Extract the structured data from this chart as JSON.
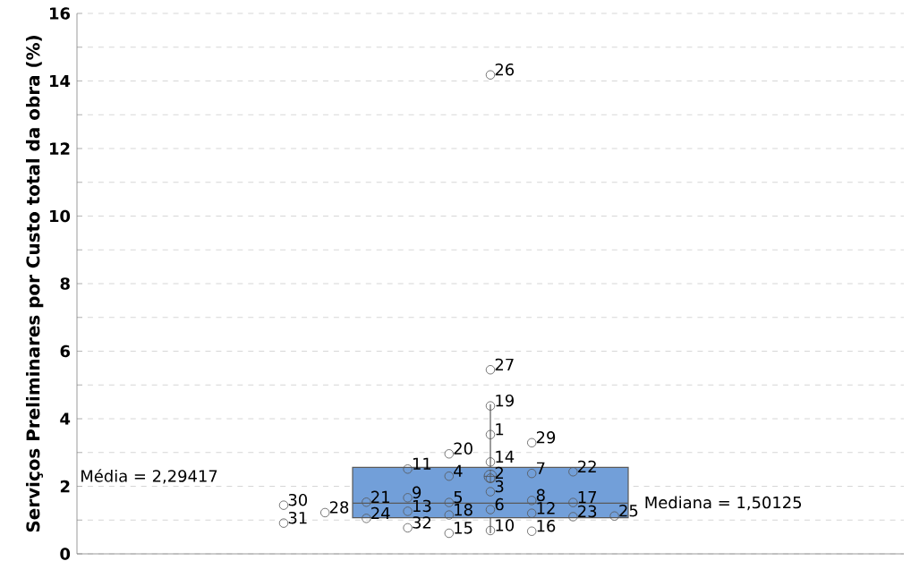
{
  "chart_data": {
    "type": "box",
    "ylabel": "Serviços Preliminares por Custo total da obra (%)",
    "categories": [
      null
    ],
    "ylim": [
      0,
      16
    ],
    "yticks": [
      0,
      {
        "value": 1,
        "label": null
      },
      2,
      {
        "value": 3,
        "label": null
      },
      4,
      {
        "value": 5,
        "label": null
      },
      6,
      {
        "value": 7,
        "label": null
      },
      8,
      {
        "value": 9,
        "label": null
      },
      10,
      {
        "value": 11,
        "label": null
      },
      12,
      {
        "value": 13,
        "label": null
      },
      14,
      {
        "value": 15,
        "label": null
      },
      16
    ],
    "grid": "y",
    "color": "#729fd9",
    "boxes": [
      {
        "low": 0.61,
        "q1": 1.07,
        "median": 1.50125,
        "q3": 2.56,
        "high": 4.43,
        "mean": 2.29417
      }
    ],
    "series": [
      {
        "type": "scatter",
        "marker": "circle",
        "color": "#555555",
        "x": [
          null,
          null,
          null,
          null,
          null,
          null,
          null,
          null,
          null,
          null,
          null,
          null,
          null,
          null,
          null,
          null,
          null,
          null,
          null,
          null,
          null,
          null,
          null,
          null,
          null,
          null,
          null,
          null,
          null,
          null,
          null,
          null
        ],
        "values": [
          3.53,
          2.24,
          1.84,
          2.3,
          1.52,
          1.31,
          2.38,
          1.58,
          1.66,
          0.69,
          2.51,
          1.2,
          1.26,
          2.72,
          0.61,
          0.67,
          1.52,
          1.15,
          4.38,
          2.96,
          1.53,
          2.43,
          1.1,
          1.05,
          1.12,
          14.18,
          5.45,
          1.22,
          3.29,
          1.44,
          0.91,
          0.77
        ]
      }
    ],
    "annotations": [
      "Média = 2,29417",
      "Mediana = 1,50125",
      "1",
      "2",
      "3",
      "4",
      "5",
      "6",
      "7",
      "8",
      "9",
      "10",
      "11",
      "12",
      "13",
      "14",
      "15",
      "16",
      "17",
      "18",
      "19",
      "20",
      "21",
      "22",
      "23",
      "24",
      "25",
      "26",
      "27",
      "28",
      "29",
      "30",
      "31",
      "32"
    ]
  }
}
